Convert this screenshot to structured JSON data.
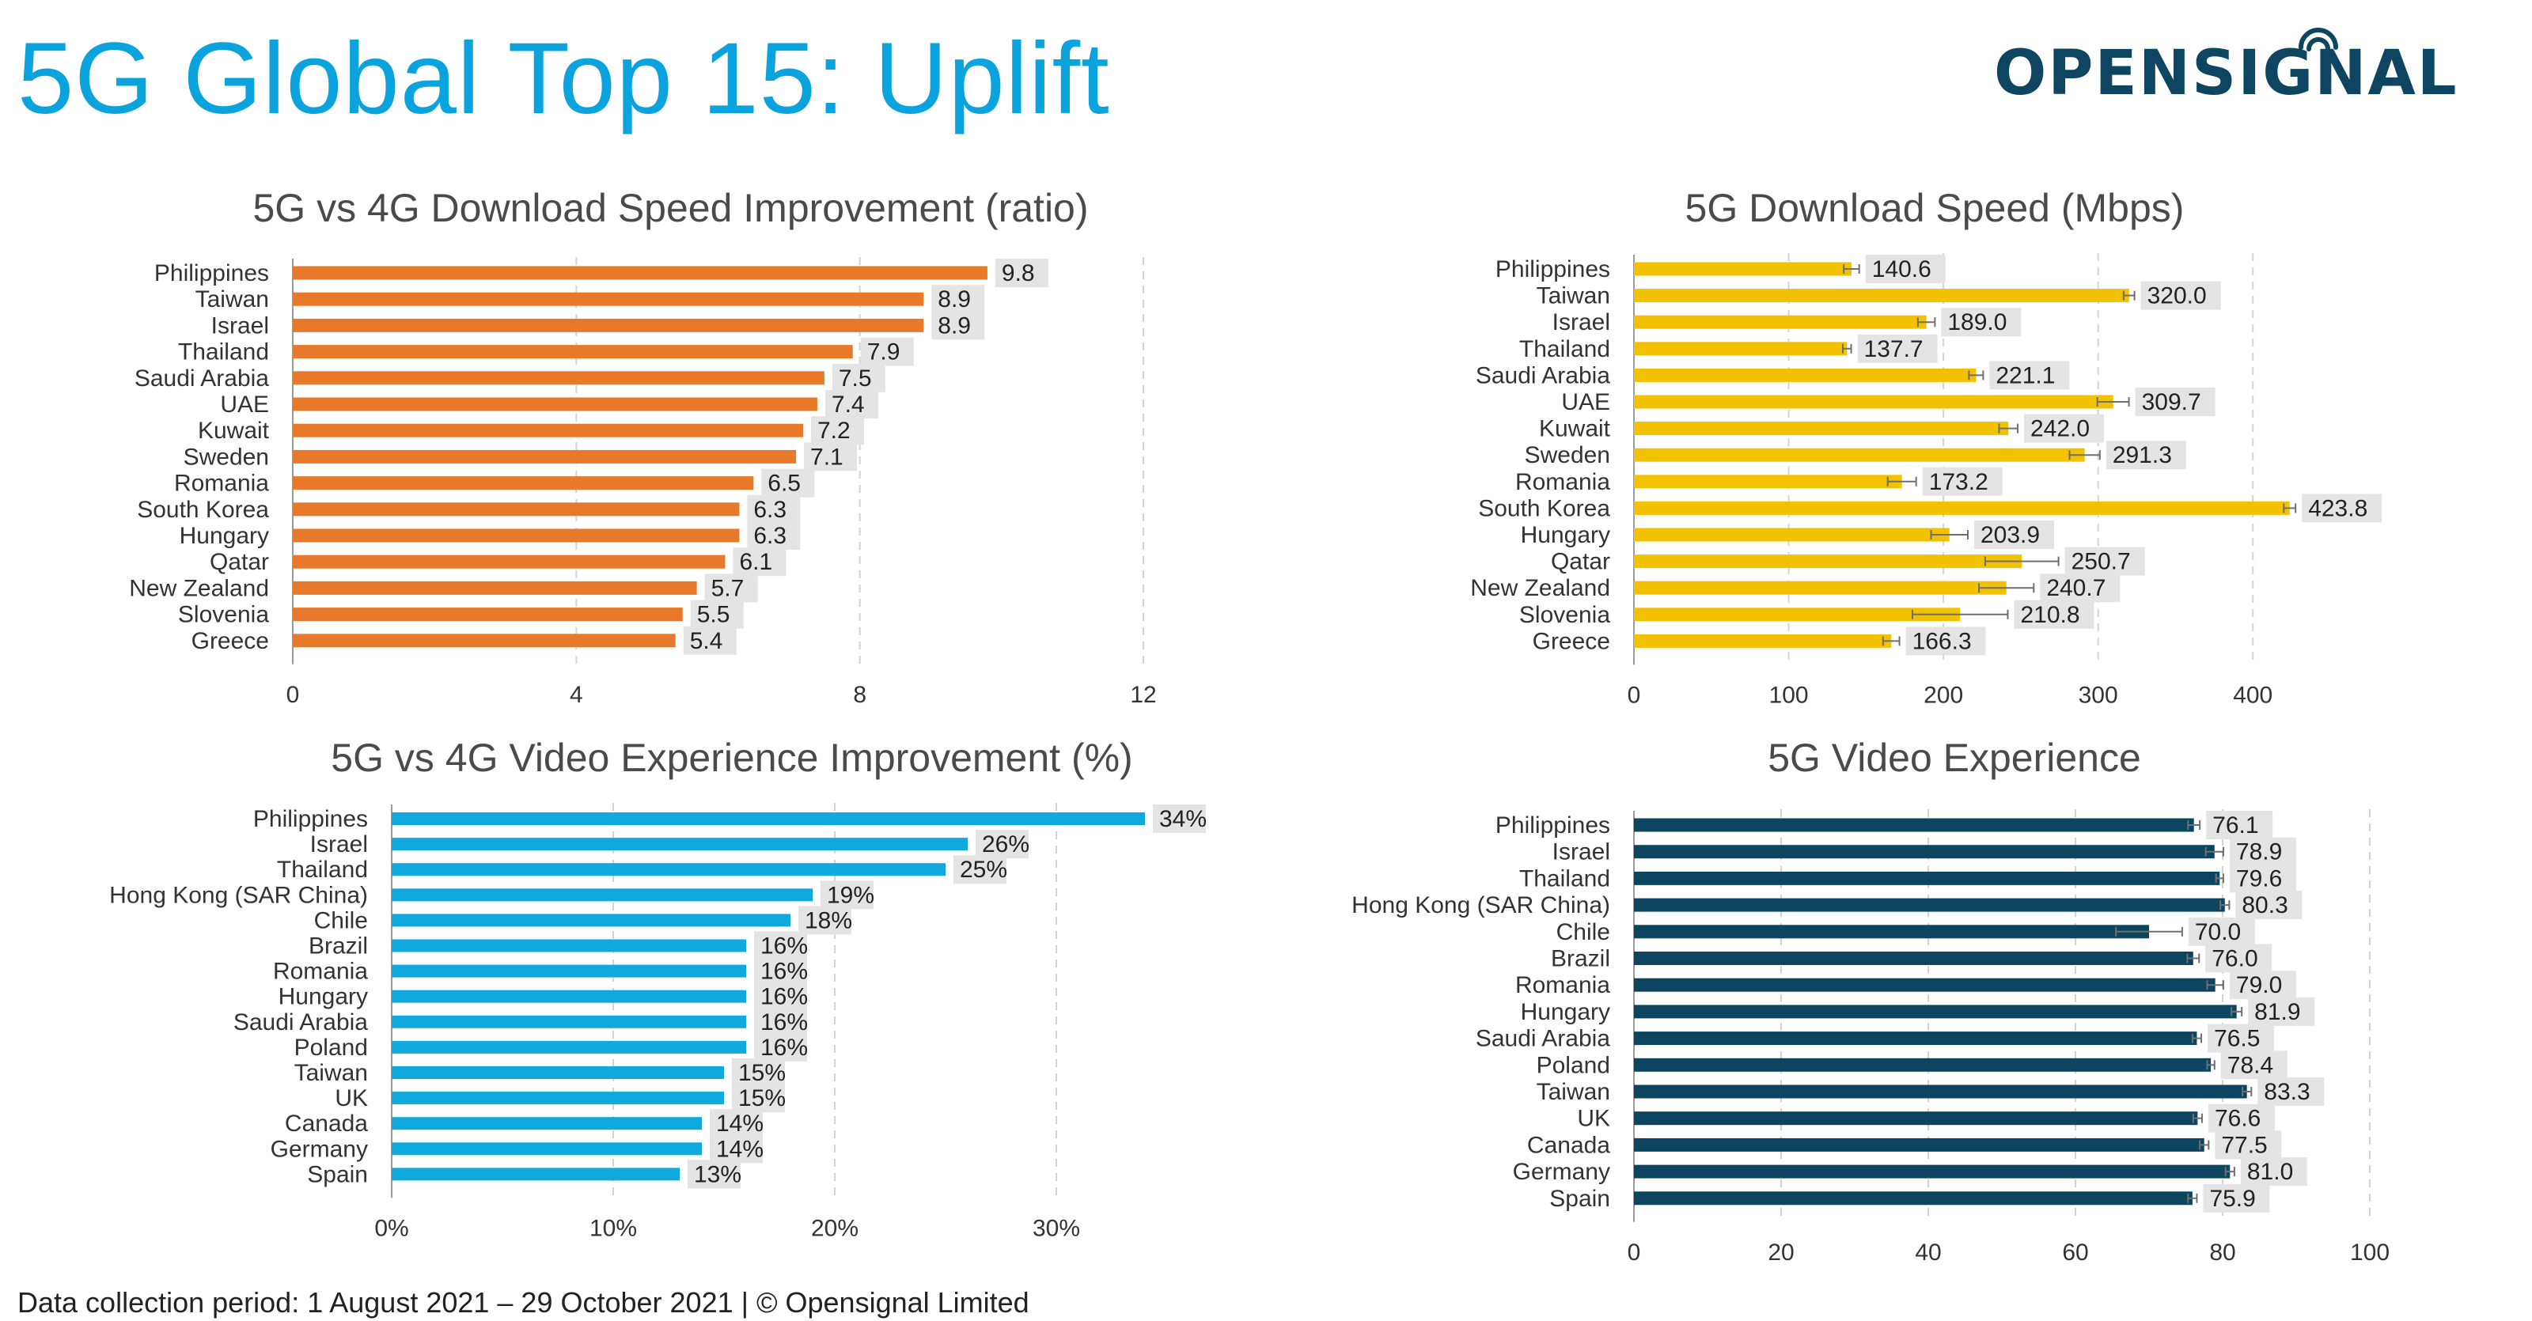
{
  "page": {
    "title": "5G Global Top 15: Uplift"
  },
  "logo": {
    "text": "OPENSIGNAL"
  },
  "footer": {
    "text": "Data collection period: 1 August 2021 – 29 October 2021  |  © Opensignal Limited"
  },
  "colors": {
    "title": "#0aa3dd",
    "orange": "#e8792b",
    "yellow": "#f2c100",
    "blue": "#10a9de",
    "navy": "#0d4561",
    "logo": "#0e4560"
  },
  "chart_data": [
    {
      "id": "c1",
      "type": "bar",
      "orientation": "horizontal",
      "title": "5G vs 4G Download Speed Improvement (ratio)",
      "categories": [
        "Philippines",
        "Taiwan",
        "Israel",
        "Thailand",
        "Saudi Arabia",
        "UAE",
        "Kuwait",
        "Sweden",
        "Romania",
        "South Korea",
        "Hungary",
        "Qatar",
        "New Zealand",
        "Slovenia",
        "Greece"
      ],
      "values": [
        9.8,
        8.9,
        8.9,
        7.9,
        7.5,
        7.4,
        7.2,
        7.1,
        6.5,
        6.3,
        6.3,
        6.1,
        5.7,
        5.5,
        5.4
      ],
      "labels": [
        "9.8",
        "8.9",
        "8.9",
        "7.9",
        "7.5",
        "7.4",
        "7.2",
        "7.1",
        "6.5",
        "6.3",
        "6.3",
        "6.1",
        "5.7",
        "5.5",
        "5.4"
      ],
      "xlim": [
        0,
        12
      ],
      "ticks": [
        0,
        4,
        8,
        12
      ],
      "tick_labels": [
        "0",
        "4",
        "8",
        "12"
      ],
      "color": "#e8792b",
      "grid": "vertical dashed"
    },
    {
      "id": "c2",
      "type": "bar",
      "orientation": "horizontal",
      "title": "5G Download Speed (Mbps)",
      "categories": [
        "Philippines",
        "Taiwan",
        "Israel",
        "Thailand",
        "Saudi Arabia",
        "UAE",
        "Kuwait",
        "Sweden",
        "Romania",
        "South Korea",
        "Hungary",
        "Qatar",
        "New Zealand",
        "Slovenia",
        "Greece"
      ],
      "values": [
        140.6,
        320.0,
        189.0,
        137.7,
        221.1,
        309.7,
        242.0,
        291.3,
        173.2,
        423.8,
        203.9,
        250.7,
        240.7,
        210.8,
        166.3
      ],
      "labels": [
        "140.6",
        "320.0",
        "189.0",
        "137.7",
        "221.1",
        "309.7",
        "242.0",
        "291.3",
        "173.2",
        "423.8",
        "203.9",
        "250.7",
        "240.7",
        "210.8",
        "166.3"
      ],
      "error_lower": [
        135.6,
        316.5,
        183.5,
        135.0,
        216.5,
        299.5,
        236.0,
        281.5,
        164.0,
        420.0,
        192.0,
        227.0,
        223.0,
        180.0,
        161.0
      ],
      "error_upper": [
        145.6,
        323.5,
        194.5,
        140.4,
        225.7,
        319.9,
        248.0,
        301.1,
        182.4,
        427.6,
        215.8,
        274.4,
        258.4,
        241.6,
        171.6
      ],
      "xlim": [
        0,
        450
      ],
      "ticks": [
        0,
        100,
        200,
        300,
        400
      ],
      "tick_labels": [
        "0",
        "100",
        "200",
        "300",
        "400"
      ],
      "color": "#f2c100",
      "grid": "vertical dashed"
    },
    {
      "id": "c3",
      "type": "bar",
      "orientation": "horizontal",
      "title": "5G vs 4G Video Experience Improvement (%)",
      "categories": [
        "Philippines",
        "Israel",
        "Thailand",
        "Hong Kong (SAR China)",
        "Chile",
        "Brazil",
        "Romania",
        "Hungary",
        "Saudi Arabia",
        "Poland",
        "Taiwan",
        "UK",
        "Canada",
        "Germany",
        "Spain"
      ],
      "values": [
        34,
        26,
        25,
        19,
        18,
        16,
        16,
        16,
        16,
        16,
        15,
        15,
        14,
        14,
        13
      ],
      "labels": [
        "34%",
        "26%",
        "25%",
        "19%",
        "18%",
        "16%",
        "16%",
        "16%",
        "16%",
        "16%",
        "15%",
        "15%",
        "14%",
        "14%",
        "13%"
      ],
      "xlim": [
        0,
        35
      ],
      "ticks": [
        0,
        10,
        20,
        30
      ],
      "tick_labels": [
        "0%",
        "10%",
        "20%",
        "30%"
      ],
      "color": "#10a9de",
      "grid": "vertical dashed"
    },
    {
      "id": "c4",
      "type": "bar",
      "orientation": "horizontal",
      "title": "5G Video Experience",
      "categories": [
        "Philippines",
        "Israel",
        "Thailand",
        "Hong Kong (SAR China)",
        "Chile",
        "Brazil",
        "Romania",
        "Hungary",
        "Saudi Arabia",
        "Poland",
        "Taiwan",
        "UK",
        "Canada",
        "Germany",
        "Spain"
      ],
      "values": [
        76.1,
        78.9,
        79.6,
        80.3,
        70.0,
        76.0,
        79.0,
        81.9,
        76.5,
        78.4,
        83.3,
        76.6,
        77.5,
        81.0,
        75.9
      ],
      "labels": [
        "76.1",
        "78.9",
        "79.6",
        "80.3",
        "70.0",
        "76.0",
        "79.0",
        "81.9",
        "76.5",
        "78.4",
        "83.3",
        "76.6",
        "77.5",
        "81.0",
        "75.9"
      ],
      "error_lower": [
        75.3,
        77.7,
        79.1,
        79.7,
        65.5,
        75.2,
        77.9,
        81.2,
        75.9,
        77.9,
        82.7,
        76.0,
        76.9,
        80.4,
        75.3
      ],
      "error_upper": [
        76.9,
        80.1,
        80.1,
        80.9,
        74.5,
        76.8,
        80.1,
        82.6,
        77.1,
        78.9,
        83.9,
        77.2,
        78.1,
        81.6,
        76.5
      ],
      "xlim": [
        0,
        100
      ],
      "ticks": [
        0,
        20,
        40,
        60,
        80,
        100
      ],
      "tick_labels": [
        "0",
        "20",
        "40",
        "60",
        "80",
        "100"
      ],
      "color": "#0d4561",
      "grid": "vertical dashed"
    }
  ]
}
